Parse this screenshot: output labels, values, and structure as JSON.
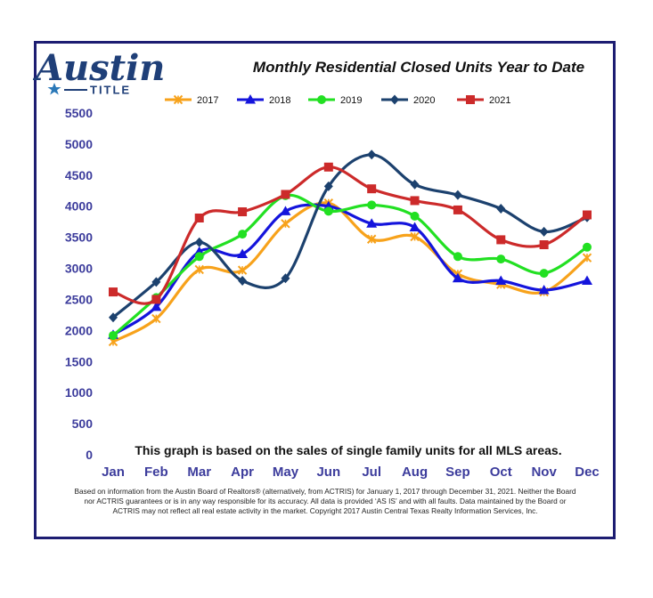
{
  "logo": {
    "word": "Austin",
    "sub": "TITLE",
    "star_color": "#2a78b8",
    "word_color": "#1f3f78"
  },
  "chart_data": {
    "type": "line",
    "title": "Monthly Residential Closed Units Year to Date",
    "categories": [
      "Jan",
      "Feb",
      "Mar",
      "Apr",
      "May",
      "Jun",
      "Jul",
      "Aug",
      "Sep",
      "Oct",
      "Nov",
      "Dec"
    ],
    "y_ticks": [
      "5500",
      "5000",
      "4500",
      "4000",
      "3500",
      "3000",
      "2500",
      "2000",
      "1500",
      "1000",
      "500",
      "0"
    ],
    "ylim": [
      0,
      5500
    ],
    "grid": false,
    "legend_position": "top",
    "series": [
      {
        "name": "2017",
        "color": "#f7a21b",
        "marker": "x",
        "values": [
          1820,
          2190,
          2980,
          2970,
          3720,
          4050,
          3470,
          3510,
          2910,
          2740,
          2620,
          3170
        ]
      },
      {
        "name": "2018",
        "color": "#1414dc",
        "marker": "triangle",
        "values": [
          1930,
          2380,
          3270,
          3230,
          3920,
          4000,
          3720,
          3660,
          2840,
          2800,
          2650,
          2800
        ]
      },
      {
        "name": "2019",
        "color": "#22e022",
        "marker": "circle",
        "values": [
          1920,
          2530,
          3190,
          3550,
          4170,
          3920,
          4020,
          3840,
          3190,
          3150,
          2920,
          3340
        ]
      },
      {
        "name": "2020",
        "color": "#1c416e",
        "marker": "diamond",
        "values": [
          2210,
          2780,
          3420,
          2800,
          2840,
          4320,
          4830,
          4350,
          4180,
          3960,
          3590,
          3820
        ]
      },
      {
        "name": "2021",
        "color": "#cc2a2a",
        "marker": "square",
        "values": [
          2620,
          2500,
          3810,
          3910,
          4190,
          4630,
          4280,
          4090,
          3940,
          3460,
          3380,
          3860
        ]
      }
    ],
    "note": "This graph is based on the sales of single family units for all MLS areas."
  },
  "disclaimer": [
    "Based on information from the Austin Board of Realtors® (alternatively, from ACTRIS) for January 1, 2017 through December 31, 2021.  Neither the Board",
    "nor ACTRIS guarantees or is in any way responsible for its accuracy.  All data is provided ‘AS IS’ and with all faults.  Data maintained by the Board or",
    "ACTRIS may not reflect all real estate activity in the market.  Copyright 2017 Austin Central Texas Realty Information Services, Inc."
  ]
}
